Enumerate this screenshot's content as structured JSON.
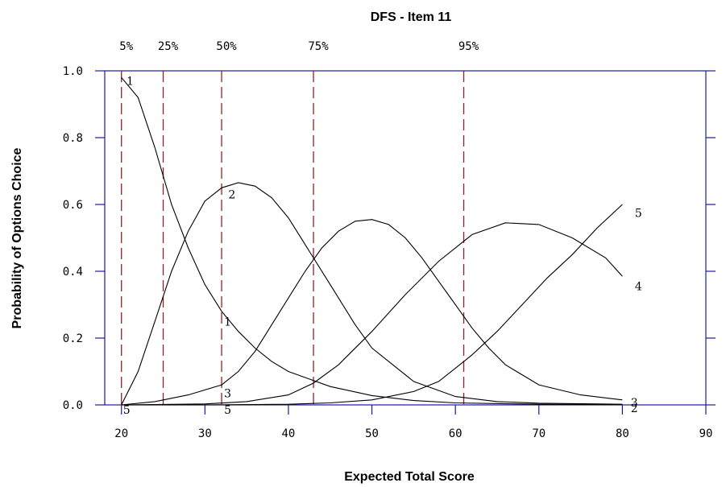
{
  "chart_data": {
    "type": "line",
    "title": "DFS - Item 11",
    "xlabel": "Expected Total Score",
    "ylabel": "Probability of Options Choice",
    "xlim": [
      18,
      90
    ],
    "ylim": [
      0,
      1
    ],
    "x_ticks": [
      20,
      30,
      40,
      50,
      60,
      70,
      80,
      90
    ],
    "y_ticks": [
      0.0,
      0.2,
      0.4,
      0.6,
      0.8,
      1.0
    ],
    "x_tick_labels": [
      "20",
      "30",
      "40",
      "50",
      "60",
      "70",
      "80",
      "90"
    ],
    "y_tick_labels": [
      "0.0",
      "0.2",
      "0.4",
      "0.6",
      "0.8",
      "1.0"
    ],
    "grid": false,
    "percentiles": [
      {
        "label": "5%",
        "x": 20
      },
      {
        "label": "25%",
        "x": 25
      },
      {
        "label": "50%",
        "x": 32
      },
      {
        "label": "75%",
        "x": 43
      },
      {
        "label": "95%",
        "x": 61
      }
    ],
    "series": [
      {
        "name": "1",
        "points": [
          [
            20,
            0.98
          ],
          [
            22,
            0.92
          ],
          [
            24,
            0.77
          ],
          [
            26,
            0.6
          ],
          [
            28,
            0.47
          ],
          [
            30,
            0.36
          ],
          [
            32,
            0.28
          ],
          [
            34,
            0.22
          ],
          [
            36,
            0.17
          ],
          [
            38,
            0.13
          ],
          [
            40,
            0.1
          ],
          [
            45,
            0.055
          ],
          [
            50,
            0.028
          ],
          [
            55,
            0.013
          ],
          [
            60,
            0.006
          ],
          [
            70,
            0.002
          ],
          [
            80,
            0.001
          ]
        ]
      },
      {
        "name": "2",
        "points": [
          [
            20,
            0.0
          ],
          [
            22,
            0.1
          ],
          [
            24,
            0.25
          ],
          [
            26,
            0.4
          ],
          [
            28,
            0.52
          ],
          [
            30,
            0.61
          ],
          [
            32,
            0.65
          ],
          [
            34,
            0.665
          ],
          [
            36,
            0.655
          ],
          [
            38,
            0.62
          ],
          [
            40,
            0.56
          ],
          [
            42,
            0.48
          ],
          [
            45,
            0.36
          ],
          [
            48,
            0.24
          ],
          [
            50,
            0.17
          ],
          [
            55,
            0.07
          ],
          [
            60,
            0.025
          ],
          [
            65,
            0.01
          ],
          [
            70,
            0.005
          ],
          [
            80,
            0.002
          ]
        ]
      },
      {
        "name": "3",
        "points": [
          [
            20,
            0.0
          ],
          [
            24,
            0.01
          ],
          [
            28,
            0.03
          ],
          [
            32,
            0.06
          ],
          [
            34,
            0.1
          ],
          [
            36,
            0.16
          ],
          [
            38,
            0.24
          ],
          [
            40,
            0.32
          ],
          [
            42,
            0.4
          ],
          [
            44,
            0.47
          ],
          [
            46,
            0.52
          ],
          [
            48,
            0.55
          ],
          [
            50,
            0.555
          ],
          [
            52,
            0.54
          ],
          [
            54,
            0.5
          ],
          [
            56,
            0.44
          ],
          [
            58,
            0.37
          ],
          [
            60,
            0.3
          ],
          [
            62,
            0.23
          ],
          [
            64,
            0.17
          ],
          [
            66,
            0.12
          ],
          [
            70,
            0.06
          ],
          [
            75,
            0.03
          ],
          [
            80,
            0.015
          ]
        ]
      },
      {
        "name": "4",
        "points": [
          [
            20,
            0.0
          ],
          [
            30,
            0.003
          ],
          [
            35,
            0.01
          ],
          [
            40,
            0.03
          ],
          [
            43,
            0.065
          ],
          [
            46,
            0.12
          ],
          [
            50,
            0.22
          ],
          [
            54,
            0.33
          ],
          [
            58,
            0.43
          ],
          [
            62,
            0.51
          ],
          [
            66,
            0.545
          ],
          [
            70,
            0.54
          ],
          [
            74,
            0.5
          ],
          [
            78,
            0.44
          ],
          [
            80,
            0.385
          ]
        ]
      },
      {
        "name": "5",
        "points": [
          [
            20,
            0.0
          ],
          [
            30,
            0.0
          ],
          [
            40,
            0.002
          ],
          [
            45,
            0.006
          ],
          [
            50,
            0.015
          ],
          [
            55,
            0.04
          ],
          [
            58,
            0.07
          ],
          [
            60,
            0.11
          ],
          [
            62,
            0.15
          ],
          [
            65,
            0.22
          ],
          [
            68,
            0.3
          ],
          [
            71,
            0.38
          ],
          [
            74,
            0.45
          ],
          [
            77,
            0.53
          ],
          [
            80,
            0.6
          ]
        ]
      }
    ],
    "curve_labels": [
      {
        "text": "1",
        "x": 20.6,
        "y": 0.97
      },
      {
        "text": "2",
        "x": 32.8,
        "y": 0.63
      },
      {
        "text": "1",
        "x": 32.3,
        "y": 0.25
      },
      {
        "text": "3",
        "x": 32.3,
        "y": 0.035
      },
      {
        "text": "5",
        "x": 32.3,
        "y": -0.015
      },
      {
        "text": "5",
        "x": 20.2,
        "y": -0.015
      },
      {
        "text": "5",
        "x": 81.5,
        "y": 0.575
      },
      {
        "text": "4",
        "x": 81.5,
        "y": 0.355
      },
      {
        "text": "3",
        "x": 81.0,
        "y": 0.007
      },
      {
        "text": "2",
        "x": 81.0,
        "y": -0.01
      }
    ]
  }
}
